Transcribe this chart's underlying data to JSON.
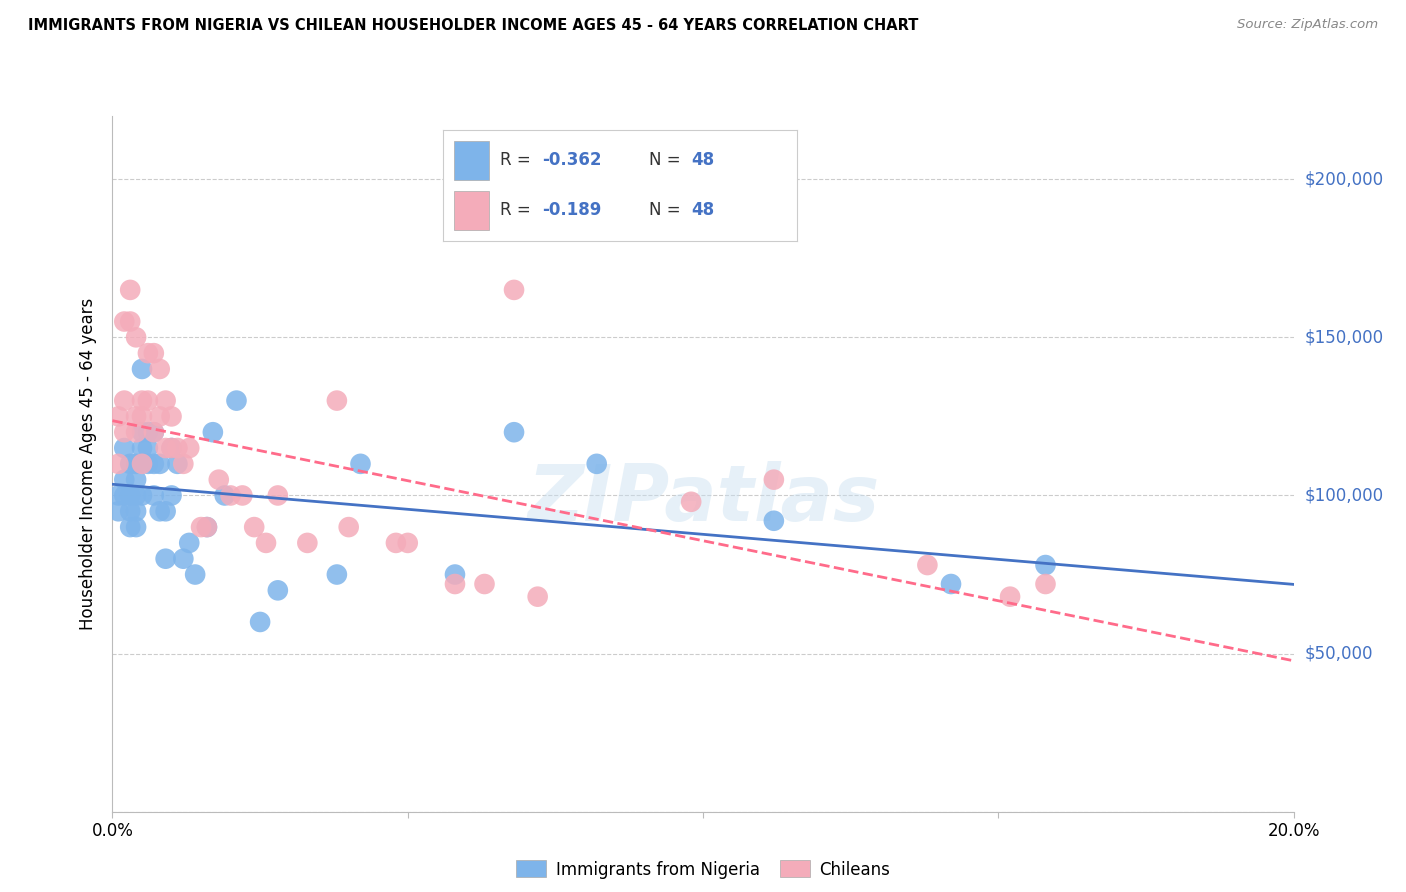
{
  "title": "IMMIGRANTS FROM NIGERIA VS CHILEAN HOUSEHOLDER INCOME AGES 45 - 64 YEARS CORRELATION CHART",
  "source": "Source: ZipAtlas.com",
  "ylabel": "Householder Income Ages 45 - 64 years",
  "xmin": 0.0,
  "xmax": 0.2,
  "ymin": 0,
  "ymax": 220000,
  "yticks": [
    0,
    50000,
    100000,
    150000,
    200000
  ],
  "ytick_labels": [
    "",
    "$50,000",
    "$100,000",
    "$150,000",
    "$200,000"
  ],
  "xticks": [
    0.0,
    0.05,
    0.1,
    0.15,
    0.2
  ],
  "xtick_labels": [
    "0.0%",
    "",
    "",
    "",
    "20.0%"
  ],
  "legend_r_nigeria": "-0.362",
  "legend_n_nigeria": "48",
  "legend_r_chilean": "-0.189",
  "legend_n_chilean": "48",
  "nigeria_color": "#7EB4EA",
  "chilean_color": "#F4ACBA",
  "nigeria_line_color": "#4472C4",
  "chilean_line_color": "#FF6B8A",
  "background_color": "#FFFFFF",
  "watermark": "ZIPatlas",
  "nigeria_x": [
    0.001,
    0.001,
    0.002,
    0.002,
    0.002,
    0.003,
    0.003,
    0.003,
    0.003,
    0.004,
    0.004,
    0.004,
    0.004,
    0.004,
    0.005,
    0.005,
    0.005,
    0.005,
    0.006,
    0.006,
    0.006,
    0.007,
    0.007,
    0.007,
    0.008,
    0.008,
    0.009,
    0.009,
    0.01,
    0.01,
    0.011,
    0.012,
    0.013,
    0.014,
    0.016,
    0.017,
    0.019,
    0.021,
    0.025,
    0.028,
    0.038,
    0.042,
    0.058,
    0.068,
    0.082,
    0.112,
    0.142,
    0.158
  ],
  "nigeria_y": [
    100000,
    95000,
    105000,
    100000,
    115000,
    110000,
    100000,
    95000,
    90000,
    105000,
    100000,
    95000,
    90000,
    110000,
    140000,
    120000,
    115000,
    100000,
    120000,
    115000,
    110000,
    120000,
    110000,
    100000,
    110000,
    95000,
    95000,
    80000,
    115000,
    100000,
    110000,
    80000,
    85000,
    75000,
    90000,
    120000,
    100000,
    130000,
    60000,
    70000,
    75000,
    110000,
    75000,
    120000,
    110000,
    92000,
    72000,
    78000
  ],
  "chilean_x": [
    0.001,
    0.001,
    0.002,
    0.002,
    0.002,
    0.003,
    0.003,
    0.004,
    0.004,
    0.004,
    0.005,
    0.005,
    0.005,
    0.006,
    0.006,
    0.007,
    0.007,
    0.008,
    0.008,
    0.009,
    0.009,
    0.01,
    0.01,
    0.011,
    0.012,
    0.013,
    0.015,
    0.016,
    0.018,
    0.02,
    0.022,
    0.024,
    0.026,
    0.028,
    0.033,
    0.038,
    0.04,
    0.048,
    0.05,
    0.058,
    0.063,
    0.068,
    0.072,
    0.098,
    0.112,
    0.138,
    0.152,
    0.158
  ],
  "chilean_y": [
    125000,
    110000,
    155000,
    130000,
    120000,
    165000,
    155000,
    150000,
    125000,
    120000,
    130000,
    125000,
    110000,
    145000,
    130000,
    145000,
    120000,
    140000,
    125000,
    130000,
    115000,
    125000,
    115000,
    115000,
    110000,
    115000,
    90000,
    90000,
    105000,
    100000,
    100000,
    90000,
    85000,
    100000,
    85000,
    130000,
    90000,
    85000,
    85000,
    72000,
    72000,
    165000,
    68000,
    98000,
    105000,
    78000,
    68000,
    72000
  ]
}
